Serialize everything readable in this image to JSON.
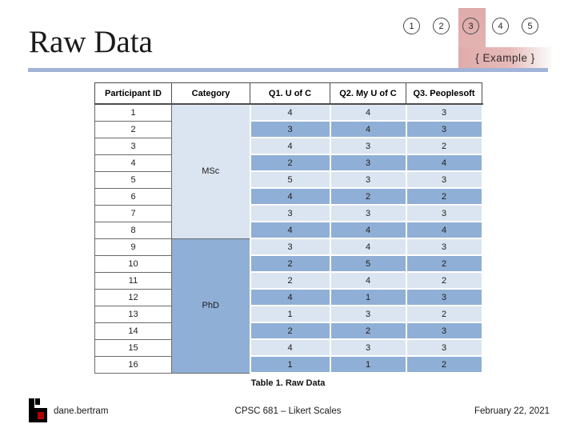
{
  "slide": {
    "title": "Raw Data",
    "pages": [
      "1",
      "2",
      "3",
      "4",
      "5"
    ],
    "active_page": "3",
    "example_label": "{ Example }"
  },
  "table": {
    "headers": [
      "Participant ID",
      "Category",
      "Q1. U of C",
      "Q2. My U of C",
      "Q3. Peoplesoft"
    ],
    "groups": [
      {
        "label": "MSc",
        "span": 8
      },
      {
        "label": "PhD",
        "span": 8
      }
    ],
    "rows": [
      {
        "id": "1",
        "values": [
          "4",
          "4",
          "3"
        ]
      },
      {
        "id": "2",
        "values": [
          "3",
          "4",
          "3"
        ]
      },
      {
        "id": "3",
        "values": [
          "4",
          "3",
          "2"
        ]
      },
      {
        "id": "4",
        "values": [
          "2",
          "3",
          "4"
        ]
      },
      {
        "id": "5",
        "values": [
          "5",
          "3",
          "3"
        ]
      },
      {
        "id": "6",
        "values": [
          "4",
          "2",
          "2"
        ]
      },
      {
        "id": "7",
        "values": [
          "3",
          "3",
          "3"
        ]
      },
      {
        "id": "8",
        "values": [
          "4",
          "4",
          "4"
        ]
      },
      {
        "id": "9",
        "values": [
          "3",
          "4",
          "3"
        ]
      },
      {
        "id": "10",
        "values": [
          "2",
          "5",
          "2"
        ]
      },
      {
        "id": "11",
        "values": [
          "2",
          "4",
          "2"
        ]
      },
      {
        "id": "12",
        "values": [
          "4",
          "1",
          "3"
        ]
      },
      {
        "id": "13",
        "values": [
          "1",
          "3",
          "2"
        ]
      },
      {
        "id": "14",
        "values": [
          "2",
          "2",
          "3"
        ]
      },
      {
        "id": "15",
        "values": [
          "4",
          "3",
          "3"
        ]
      },
      {
        "id": "16",
        "values": [
          "1",
          "1",
          "2"
        ]
      }
    ],
    "caption": "Table 1. Raw Data"
  },
  "footer": {
    "author": "dane.bertram",
    "course": "CPSC 681 – Likert Scales",
    "date": "February 22, 2021"
  },
  "colors": {
    "row_light": "#dbe5f1",
    "row_dark": "#90afd6",
    "rule_blue": "#a1b4d8",
    "ribbon_pink": "#dfabaa",
    "ribbon_pink_fade": "#f6ecec",
    "logo_red": "#b00000"
  }
}
